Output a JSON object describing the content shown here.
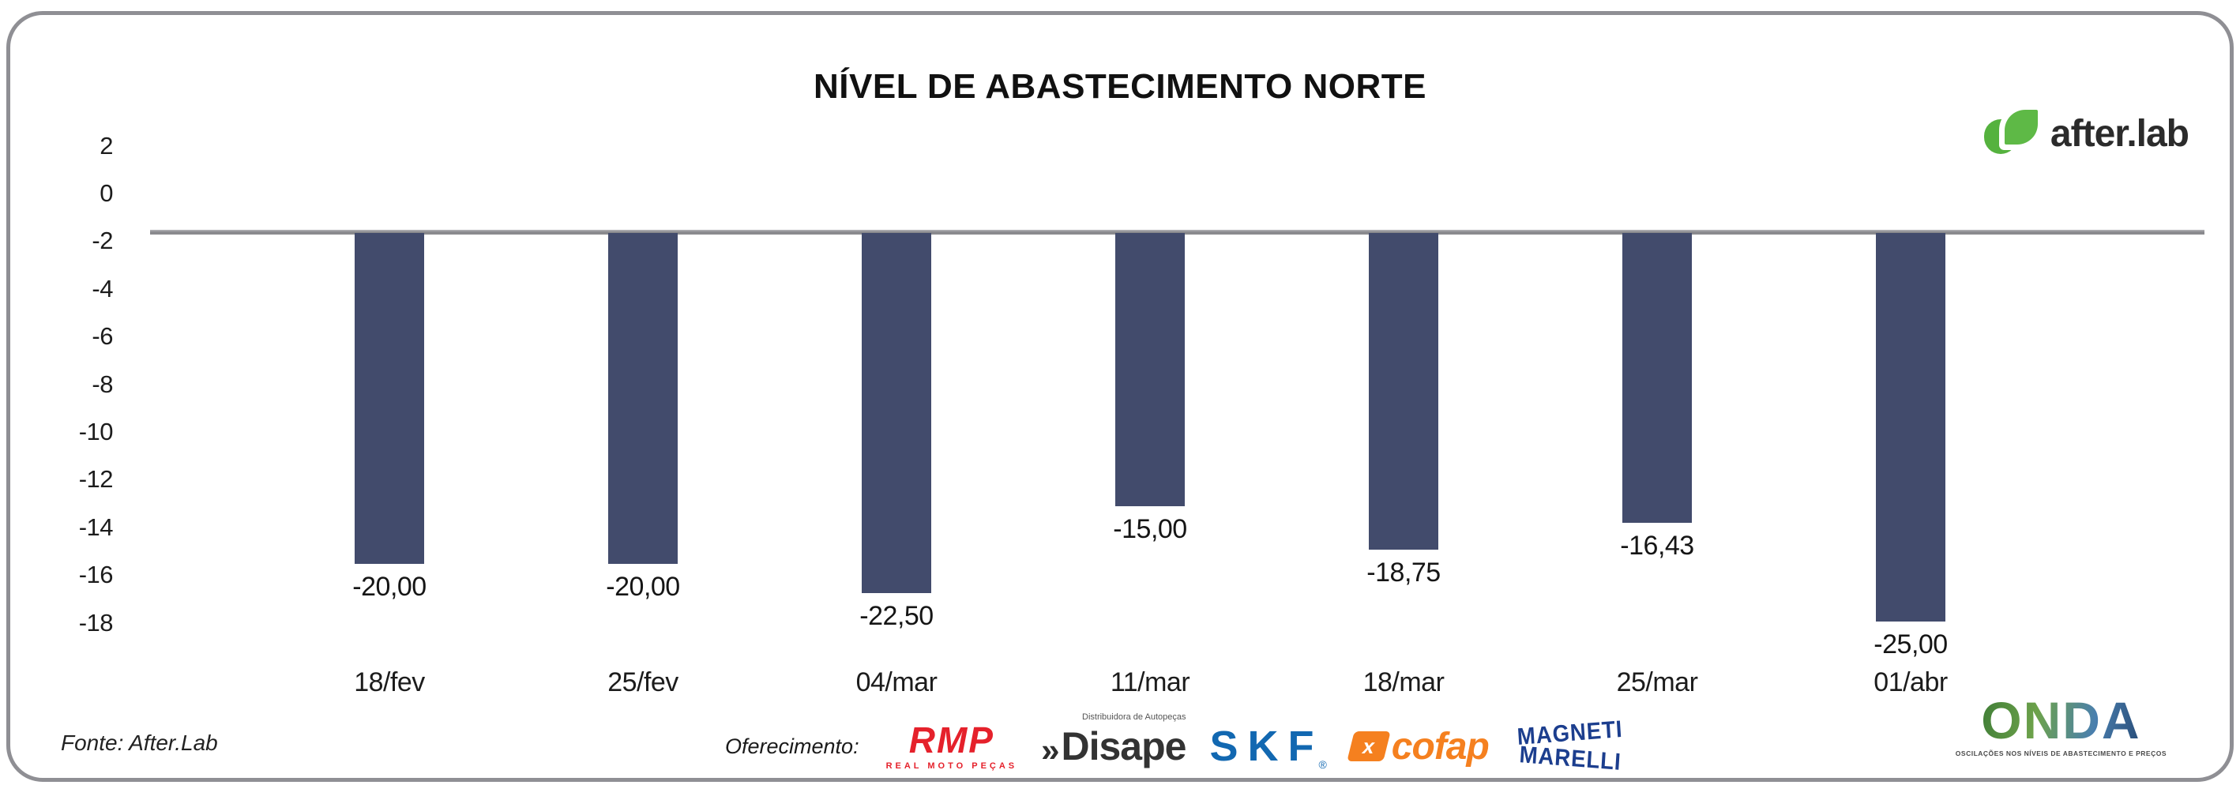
{
  "chart_data": {
    "type": "bar",
    "title": "NÍVEL DE ABASTECIMENTO NORTE",
    "categories": [
      "18/fev",
      "25/fev",
      "04/mar",
      "11/mar",
      "18/mar",
      "25/mar",
      "01/abr"
    ],
    "values": [
      -20,
      -20,
      -22.5,
      -15,
      -18.75,
      -16.43,
      -25
    ],
    "value_labels": [
      "-20,00",
      "-20,00",
      "-22,50",
      "-15,00",
      "-18,75",
      "-16,43",
      "-25,00"
    ],
    "y_ticks": [
      2,
      0,
      -2,
      -4,
      -6,
      -8,
      -10,
      -12,
      -14,
      -16,
      -18
    ],
    "ylim": [
      2,
      -18
    ],
    "baseline_value": -1.5,
    "bar_color": "#424b6c",
    "baseline_color": "#8a8a8e",
    "grid": false,
    "legend": "none",
    "xlabel": "",
    "ylabel": ""
  },
  "brand": {
    "name": "after.lab",
    "leaf_color": "#5eb946"
  },
  "footer": {
    "source": "Fonte: After.Lab",
    "sponsors": {
      "label": "Oferecimento:",
      "rmp": {
        "name": "RMP",
        "tagline": "REAL MOTO PEÇAS",
        "color": "#e5212b"
      },
      "disape": {
        "mark": "»",
        "name": "Disape",
        "tagline": "Distribuidora de Autopeças"
      },
      "skf": {
        "name": "SKF",
        "reg": "®",
        "color": "#1268b1"
      },
      "cofap": {
        "name": "cofap",
        "badge": "x",
        "color": "#f5801f"
      },
      "magneti": {
        "line1": "MAGNETI",
        "line2": "MARELLI",
        "color": "#1c3e8e"
      }
    },
    "onda": {
      "name": "ONDA",
      "tagline": "OSCILAÇÕES NOS NÍVEIS DE ABASTECIMENTO E PREÇOS"
    }
  }
}
